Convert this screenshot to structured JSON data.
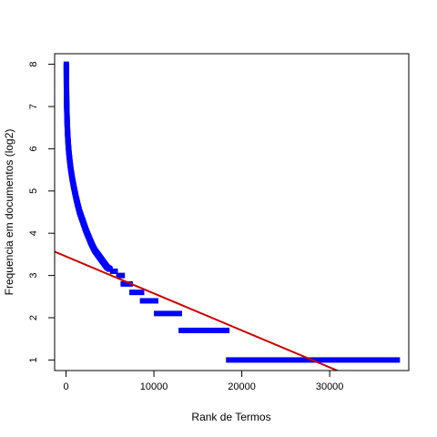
{
  "chart_data": {
    "type": "scatter",
    "title": "",
    "xlabel": "Rank de Termos",
    "ylabel": "Frequencia em documentos (log2)",
    "xlim": [
      -1300,
      39000
    ],
    "ylim": [
      0.75,
      8.25
    ],
    "x_ticks": [
      0,
      10000,
      20000,
      30000
    ],
    "x_tick_labels": [
      "0",
      "10000",
      "20000",
      "30000"
    ],
    "y_ticks": [
      1,
      2,
      3,
      4,
      5,
      6,
      7,
      8
    ],
    "y_tick_labels": [
      "1",
      "2",
      "3",
      "4",
      "5",
      "6",
      "7",
      "8"
    ],
    "grid": false,
    "point_color": "#0000ff",
    "line_color": "#cc0000",
    "series": [
      {
        "type": "points",
        "curve_points": [
          [
            30,
            8.0
          ],
          [
            40,
            7.6
          ],
          [
            60,
            7.2
          ],
          [
            90,
            6.9
          ],
          [
            130,
            6.6
          ],
          [
            180,
            6.35
          ],
          [
            250,
            6.1
          ],
          [
            330,
            5.9
          ],
          [
            430,
            5.7
          ],
          [
            550,
            5.5
          ],
          [
            700,
            5.3
          ],
          [
            880,
            5.1
          ],
          [
            1080,
            4.9
          ],
          [
            1300,
            4.7
          ],
          [
            1550,
            4.5
          ],
          [
            1800,
            4.35
          ],
          [
            2050,
            4.2
          ],
          [
            2300,
            4.05
          ],
          [
            2600,
            3.9
          ],
          [
            2900,
            3.75
          ],
          [
            3250,
            3.6
          ],
          [
            3600,
            3.5
          ],
          [
            3950,
            3.4
          ],
          [
            4300,
            3.3
          ],
          [
            4650,
            3.2
          ],
          [
            5000,
            3.15
          ]
        ],
        "plateaus": [
          {
            "x_start": 5000,
            "x_end": 5900,
            "y": 3.1
          },
          {
            "x_start": 5700,
            "x_end": 6700,
            "y": 3.0
          },
          {
            "x_start": 6200,
            "x_end": 7600,
            "y": 2.8
          },
          {
            "x_start": 7200,
            "x_end": 8900,
            "y": 2.6
          },
          {
            "x_start": 8400,
            "x_end": 10500,
            "y": 2.4
          },
          {
            "x_start": 10000,
            "x_end": 13200,
            "y": 2.1
          },
          {
            "x_start": 12800,
            "x_end": 18600,
            "y": 1.7
          },
          {
            "x_start": 18200,
            "x_end": 38000,
            "y": 1.0
          }
        ]
      },
      {
        "type": "regression-line",
        "intercept": 3.45,
        "slope": -8.75e-05
      }
    ]
  }
}
